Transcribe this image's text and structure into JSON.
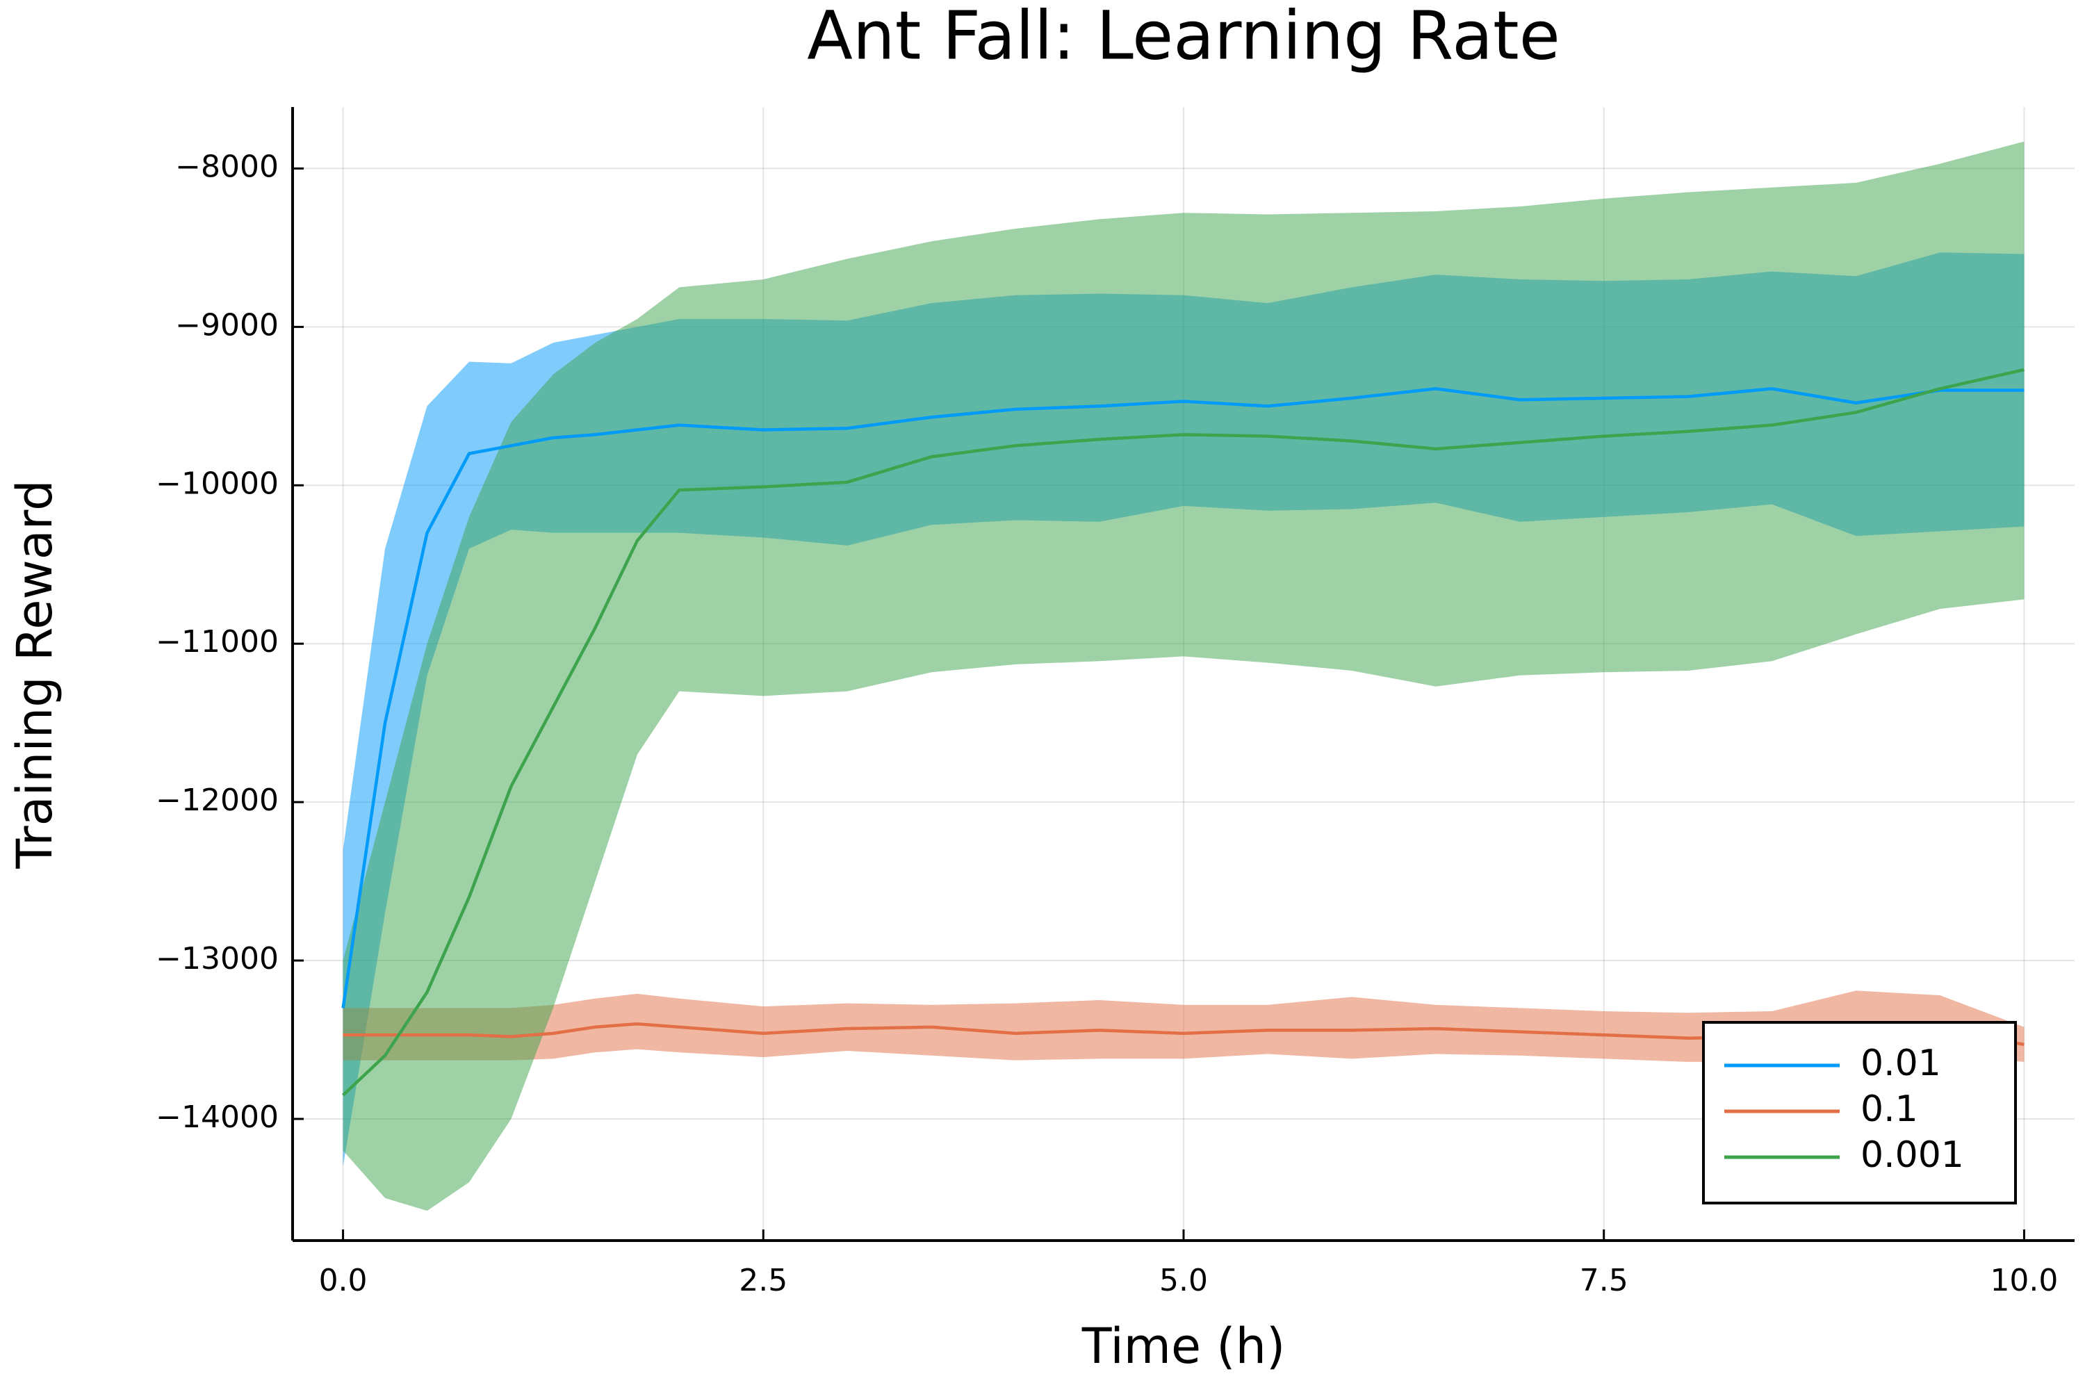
{
  "chart_data": {
    "type": "line-band",
    "title": "Ant Fall: Learning Rate",
    "x_label": "Time (h)",
    "y_label": "Training Reward",
    "x": [
      0,
      0.25,
      0.5,
      0.75,
      1,
      1.25,
      1.5,
      1.75,
      2,
      2.5,
      3,
      3.5,
      4,
      4.5,
      5,
      5.5,
      6,
      6.5,
      7,
      7.5,
      8,
      8.5,
      9,
      9.5,
      10
    ],
    "series": [
      {
        "name": "0.01",
        "color": "#009af9",
        "values": [
          -13300,
          -11500,
          -10300,
          -9800,
          -9750,
          -9700,
          -9680,
          -9650,
          -9620,
          -9650,
          -9640,
          -9570,
          -9520,
          -9500,
          -9470,
          -9500,
          -9450,
          -9390,
          -9460,
          -9450,
          -9440,
          -9390,
          -9480,
          -9400,
          -9400
        ],
        "upper": [
          -12300,
          -10400,
          -9500,
          -9220,
          -9230,
          -9100,
          -9050,
          -9000,
          -8950,
          -8950,
          -8960,
          -8850,
          -8800,
          -8790,
          -8800,
          -8850,
          -8750,
          -8670,
          -8700,
          -8710,
          -8700,
          -8650,
          -8680,
          -8530,
          -8540
        ],
        "lower": [
          -14300,
          -12700,
          -11200,
          -10400,
          -10280,
          -10300,
          -10300,
          -10300,
          -10300,
          -10330,
          -10380,
          -10250,
          -10220,
          -10230,
          -10130,
          -10160,
          -10150,
          -10110,
          -10230,
          -10200,
          -10170,
          -10120,
          -10320,
          -10290,
          -10260
        ]
      },
      {
        "name": "0.1",
        "color": "#e26f46",
        "values": [
          -13470,
          -13470,
          -13470,
          -13470,
          -13480,
          -13460,
          -13420,
          -13400,
          -13420,
          -13460,
          -13430,
          -13420,
          -13460,
          -13440,
          -13460,
          -13440,
          -13440,
          -13430,
          -13450,
          -13470,
          -13490,
          -13480,
          -13450,
          -13440,
          -13530
        ],
        "upper": [
          -13300,
          -13300,
          -13300,
          -13300,
          -13300,
          -13280,
          -13240,
          -13210,
          -13240,
          -13290,
          -13270,
          -13280,
          -13270,
          -13250,
          -13280,
          -13280,
          -13230,
          -13280,
          -13300,
          -13320,
          -13330,
          -13320,
          -13190,
          -13220,
          -13420
        ],
        "lower": [
          -13630,
          -13630,
          -13630,
          -13630,
          -13630,
          -13620,
          -13580,
          -13560,
          -13580,
          -13610,
          -13570,
          -13600,
          -13630,
          -13620,
          -13620,
          -13590,
          -13620,
          -13590,
          -13600,
          -13620,
          -13640,
          -13640,
          -13630,
          -13600,
          -13640
        ]
      },
      {
        "name": "0.001",
        "color": "#3da44d",
        "values": [
          -13850,
          -13600,
          -13200,
          -12600,
          -11900,
          -11400,
          -10900,
          -10350,
          -10030,
          -10010,
          -9980,
          -9820,
          -9750,
          -9710,
          -9680,
          -9690,
          -9720,
          -9770,
          -9730,
          -9690,
          -9660,
          -9620,
          -9540,
          -9390,
          -9270
        ],
        "upper": [
          -13000,
          -12000,
          -11000,
          -10200,
          -9600,
          -9300,
          -9100,
          -8950,
          -8750,
          -8700,
          -8570,
          -8460,
          -8380,
          -8320,
          -8280,
          -8290,
          -8280,
          -8270,
          -8240,
          -8190,
          -8150,
          -8120,
          -8090,
          -7970,
          -7830
        ],
        "lower": [
          -14200,
          -14500,
          -14580,
          -14400,
          -14000,
          -13300,
          -12500,
          -11700,
          -11300,
          -11330,
          -11300,
          -11180,
          -11130,
          -11110,
          -11080,
          -11120,
          -11170,
          -11270,
          -11200,
          -11180,
          -11170,
          -11110,
          -10940,
          -10780,
          -10720
        ]
      }
    ],
    "xlim": [
      -0.3,
      10.3
    ],
    "ylim": [
      -14768,
      -7612
    ],
    "xticks": [
      {
        "value": 0,
        "label": "0.0"
      },
      {
        "value": 2.5,
        "label": "2.5"
      },
      {
        "value": 5,
        "label": "5.0"
      },
      {
        "value": 7.5,
        "label": "7.5"
      },
      {
        "value": 10,
        "label": "10.0"
      }
    ],
    "yticks": [
      {
        "value": -14000,
        "label": "−14000"
      },
      {
        "value": -13000,
        "label": "−13000"
      },
      {
        "value": -12000,
        "label": "−12000"
      },
      {
        "value": -11000,
        "label": "−11000"
      },
      {
        "value": -10000,
        "label": "−10000"
      },
      {
        "value": -9000,
        "label": "−9000"
      },
      {
        "value": -8000,
        "label": "−8000"
      }
    ],
    "grid": true,
    "legend": "bottom-right"
  }
}
